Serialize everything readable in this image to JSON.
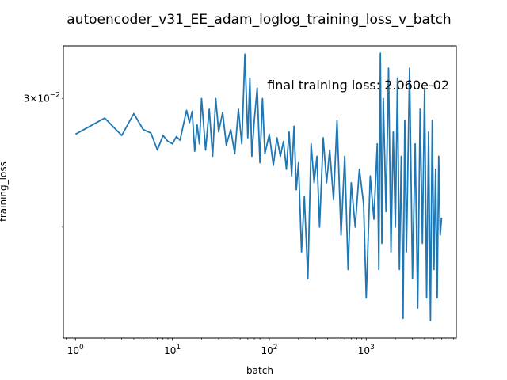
{
  "chart_data": {
    "type": "line",
    "title": "autoencoder_v31_EE_adam_loglog_training_loss_v_batch",
    "xlabel": "batch",
    "ylabel": "training_loss",
    "xscale": "log",
    "yscale": "log",
    "xlim": [
      0.75,
      8500
    ],
    "ylim": [
      0.0141,
      0.0354
    ],
    "x_ticks": [
      {
        "value": 1,
        "base": "10",
        "exp": "0"
      },
      {
        "value": 10,
        "base": "10",
        "exp": "1"
      },
      {
        "value": 100,
        "base": "10",
        "exp": "2"
      },
      {
        "value": 1000,
        "base": "10",
        "exp": "3"
      }
    ],
    "y_ticks": [
      {
        "value": 0.03,
        "mantissa": "3",
        "base": "10",
        "exp": "−2"
      }
    ],
    "grid": false,
    "annotation": "final training loss: 2.060e-02",
    "series": [
      {
        "name": "",
        "color": "#1f77b4",
        "x": [
          1,
          2,
          3,
          4,
          5,
          6,
          7,
          8,
          9,
          10,
          11,
          12,
          14,
          15,
          16,
          17,
          18,
          19,
          20,
          22,
          24,
          26,
          28,
          30,
          33,
          36,
          40,
          44,
          48,
          52,
          56,
          60,
          63,
          66,
          70,
          75,
          80,
          85,
          90,
          100,
          110,
          120,
          130,
          140,
          150,
          160,
          170,
          180,
          190,
          200,
          215,
          230,
          250,
          270,
          290,
          310,
          330,
          360,
          390,
          420,
          460,
          500,
          550,
          600,
          650,
          700,
          770,
          850,
          940,
          1000,
          1100,
          1200,
          1300,
          1350,
          1400,
          1450,
          1500,
          1600,
          1700,
          1800,
          1900,
          2000,
          2100,
          2200,
          2300,
          2400,
          2500,
          2600,
          2800,
          3000,
          3200,
          3400,
          3600,
          3800,
          4000,
          4200,
          4400,
          4600,
          4800,
          5000,
          5200,
          5400,
          5600,
          5800,
          6000
        ],
        "y": [
          0.0268,
          0.0282,
          0.0267,
          0.0286,
          0.0272,
          0.0269,
          0.0255,
          0.0267,
          0.0262,
          0.026,
          0.0266,
          0.0263,
          0.0289,
          0.0278,
          0.0288,
          0.0254,
          0.0276,
          0.026,
          0.03,
          0.0255,
          0.029,
          0.025,
          0.03,
          0.027,
          0.0287,
          0.0259,
          0.0272,
          0.0252,
          0.029,
          0.026,
          0.0345,
          0.0265,
          0.032,
          0.025,
          0.028,
          0.031,
          0.0245,
          0.03,
          0.0252,
          0.0268,
          0.0243,
          0.0265,
          0.025,
          0.0262,
          0.024,
          0.027,
          0.0235,
          0.0275,
          0.0225,
          0.0245,
          0.0185,
          0.022,
          0.017,
          0.026,
          0.023,
          0.025,
          0.02,
          0.0265,
          0.023,
          0.0255,
          0.0218,
          0.028,
          0.0195,
          0.025,
          0.0175,
          0.023,
          0.02,
          0.024,
          0.0215,
          0.016,
          0.0235,
          0.0205,
          0.026,
          0.0175,
          0.0346,
          0.019,
          0.03,
          0.021,
          0.033,
          0.0185,
          0.027,
          0.02,
          0.032,
          0.0175,
          0.025,
          0.015,
          0.028,
          0.0185,
          0.033,
          0.017,
          0.026,
          0.0155,
          0.029,
          0.019,
          0.031,
          0.016,
          0.027,
          0.0149,
          0.028,
          0.0175,
          0.024,
          0.016,
          0.025,
          0.0195,
          0.0206
        ]
      }
    ]
  }
}
